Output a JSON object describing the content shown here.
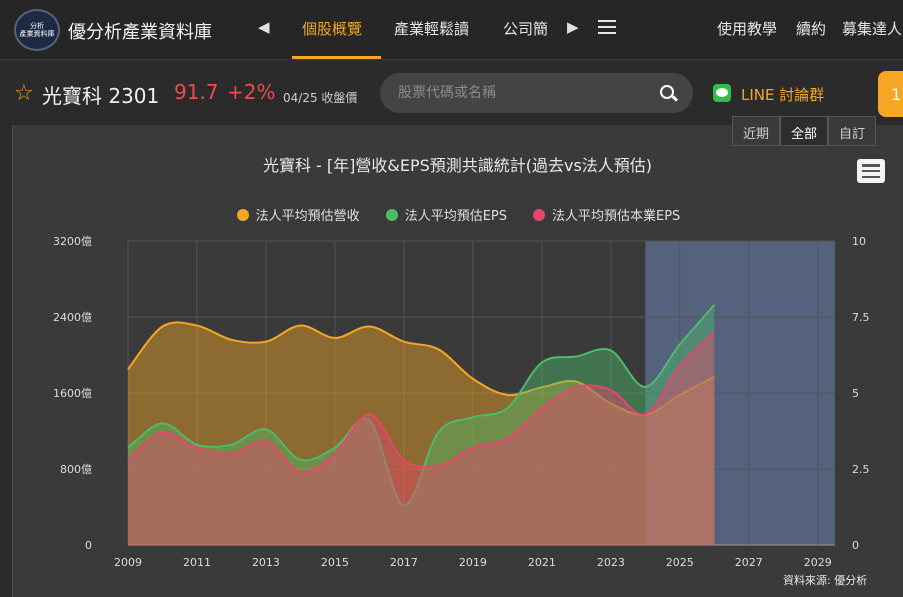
{
  "nav": {
    "brand": "優分析產業資料庫",
    "logo_lines": [
      "分析",
      "產業資料庫"
    ],
    "tabs": [
      "個股概覽",
      "產業輕鬆讀",
      "公司簡"
    ],
    "active_tab": 0,
    "right_links": [
      "使用教學",
      "續約",
      "募集達人"
    ]
  },
  "stock": {
    "name": "光寶科 2301",
    "price": "91.7",
    "change": "+2%",
    "date_label": "04/25 收盤價",
    "search_placeholder": "股票代碼或名稱",
    "line_label": "LINE 討論群",
    "badge": "1"
  },
  "range_buttons": [
    "近期",
    "全部",
    "自訂"
  ],
  "range_active": 1,
  "colors": {
    "revenue": "#f5a623",
    "eps": "#4cbb6a",
    "core_eps": "#e8456e",
    "forecast_band": "#5a6a8a"
  },
  "chart_data": {
    "type": "area",
    "title": "光寶科 - [年]營收&EPS預測共識統計(過去vs法人預估)",
    "x": [
      2009,
      2010,
      2011,
      2012,
      2013,
      2014,
      2015,
      2016,
      2017,
      2018,
      2019,
      2020,
      2021,
      2022,
      2023,
      2024,
      2025,
      2026
    ],
    "x_ticks": [
      2009,
      2011,
      2013,
      2015,
      2017,
      2019,
      2021,
      2023,
      2025,
      2027,
      2029
    ],
    "xlim": [
      2009,
      2029.5
    ],
    "y_left": {
      "ticks": [
        "0",
        "800億",
        "1600億",
        "2400億",
        "3200億"
      ],
      "ylim": [
        0,
        3200
      ]
    },
    "y_right": {
      "ticks": [
        "0",
        "2.5",
        "5",
        "7.5",
        "10"
      ],
      "ylim": [
        0,
        10
      ]
    },
    "forecast_range": [
      2024,
      2029.5
    ],
    "series": [
      {
        "name": "法人平均預估營收",
        "axis": "left",
        "color": "#f5a623",
        "values": [
          1850,
          2300,
          2310,
          2160,
          2140,
          2310,
          2180,
          2300,
          2140,
          2060,
          1750,
          1580,
          1660,
          1720,
          1490,
          1370,
          1580,
          1770
        ]
      },
      {
        "name": "法人平均預估EPS",
        "axis": "right",
        "color": "#4cbb6a",
        "values": [
          3.2,
          4.0,
          3.3,
          3.3,
          3.8,
          2.8,
          3.2,
          4.1,
          1.3,
          3.7,
          4.2,
          4.5,
          6.0,
          6.2,
          6.4,
          5.2,
          6.6,
          7.9
        ]
      },
      {
        "name": "法人平均預估本業EPS",
        "axis": "right",
        "color": "#e8456e",
        "values": [
          2.8,
          3.7,
          3.2,
          3.0,
          3.4,
          2.4,
          3.0,
          4.3,
          2.8,
          2.6,
          3.2,
          3.5,
          4.5,
          5.2,
          5.1,
          4.3,
          5.9,
          7.0
        ]
      }
    ]
  },
  "source": "資料來源: 優分析"
}
